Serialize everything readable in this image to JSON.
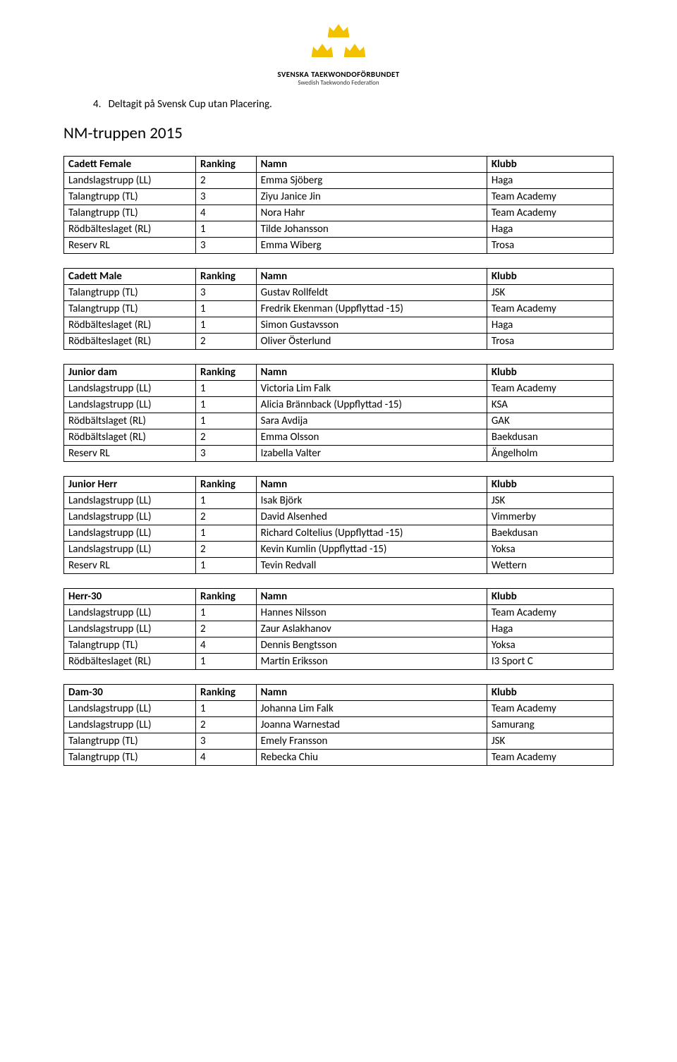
{
  "logo": {
    "title": "SVENSKA TAEKWONDOFÖRBUNDET",
    "subtitle": "Swedish Taekwondo Federation",
    "crown_color": "#f2c200"
  },
  "list_item": {
    "num": "4.",
    "text": "Deltagit på Svensk Cup utan Placering."
  },
  "heading": "NM-truppen 2015",
  "tables": [
    {
      "header": [
        "Cadett Female",
        "Ranking",
        "Namn",
        "Klubb"
      ],
      "rows": [
        [
          "Landslagstrupp (LL)",
          "2",
          "Emma Sjöberg",
          "Haga"
        ],
        [
          "Talangtrupp (TL)",
          "3",
          "Ziyu Janice Jin",
          "Team Academy"
        ],
        [
          "Talangtrupp (TL)",
          "4",
          "Nora Hahr",
          "Team Academy"
        ],
        [
          "Rödbälteslaget (RL)",
          "1",
          "Tilde Johansson",
          "Haga"
        ],
        [
          "Reserv RL",
          "3",
          "Emma Wiberg",
          "Trosa"
        ]
      ]
    },
    {
      "header": [
        "Cadett Male",
        "Ranking",
        "Namn",
        "Klubb"
      ],
      "rows": [
        [
          "Talangtrupp (TL)",
          "3",
          "Gustav Rollfeldt",
          "JSK"
        ],
        [
          "Talangtrupp (TL)",
          "1",
          "Fredrik Ekenman (Uppflyttad -15)",
          "Team Academy"
        ],
        [
          "Rödbälteslaget (RL)",
          "1",
          "Simon Gustavsson",
          "Haga"
        ],
        [
          "Rödbälteslaget (RL)",
          "2",
          "Oliver Österlund",
          "Trosa"
        ]
      ]
    },
    {
      "header": [
        "Junior dam",
        "Ranking",
        "Namn",
        "Klubb"
      ],
      "rows": [
        [
          "Landslagstrupp (LL)",
          "1",
          "Victoria Lim Falk",
          "Team Academy"
        ],
        [
          "Landslagstrupp (LL)",
          "1",
          "Alicia Brännback (Uppflyttad -15)",
          "KSA"
        ],
        [
          "Rödbältslaget (RL)",
          "1",
          "Sara Avdija",
          "GAK"
        ],
        [
          "Rödbältslaget (RL)",
          "2",
          "Emma Olsson",
          "Baekdusan"
        ],
        [
          "Reserv RL",
          "3",
          "Izabella Valter",
          "Ängelholm"
        ]
      ]
    },
    {
      "header": [
        "Junior Herr",
        "Ranking",
        "Namn",
        "Klubb"
      ],
      "rows": [
        [
          "Landslagstrupp (LL)",
          "1",
          "Isak Björk",
          "JSK"
        ],
        [
          "Landslagstrupp (LL)",
          "2",
          "David Alsenhed",
          "Vimmerby"
        ],
        [
          "Landslagstrupp (LL)",
          "1",
          "Richard Coltelius (Uppflyttad -15)",
          "Baekdusan"
        ],
        [
          "Landslagstrupp (LL)",
          "2",
          "Kevin Kumlin (Uppflyttad -15)",
          "Yoksa"
        ],
        [
          "Reserv RL",
          "1",
          "Tevin Redvall",
          "Wettern"
        ]
      ]
    },
    {
      "header": [
        "Herr-30",
        "Ranking",
        "Namn",
        "Klubb"
      ],
      "rows": [
        [
          "Landslagstrupp (LL)",
          "1",
          "Hannes Nilsson",
          "Team Academy"
        ],
        [
          "Landslagstrupp (LL)",
          "2",
          "Zaur Aslakhanov",
          "Haga"
        ],
        [
          "Talangtrupp (TL)",
          "4",
          "Dennis Bengtsson",
          "Yoksa"
        ],
        [
          "Rödbälteslaget (RL)",
          "1",
          "Martin Eriksson",
          "I3 Sport C"
        ]
      ]
    },
    {
      "header": [
        "Dam-30",
        "Ranking",
        "Namn",
        "Klubb"
      ],
      "rows": [
        [
          "Landslagstrupp (LL)",
          "1",
          "Johanna Lim Falk",
          "Team Academy"
        ],
        [
          "Landslagstrupp (LL)",
          "2",
          "Joanna Warnestad",
          "Samurang"
        ],
        [
          "Talangtrupp (TL)",
          "3",
          "Emely Fransson",
          "JSK"
        ],
        [
          "Talangtrupp (TL)",
          "4",
          "Rebecka Chiu",
          "Team Academy"
        ]
      ]
    }
  ]
}
